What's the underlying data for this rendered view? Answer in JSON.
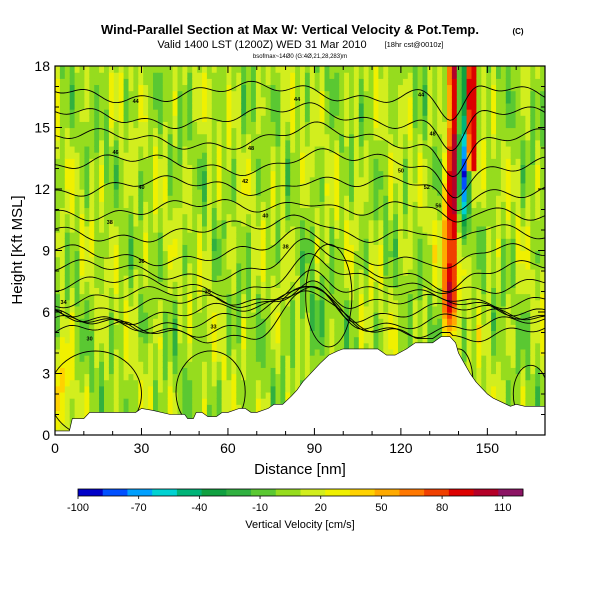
{
  "chart_data": {
    "type": "heatmap",
    "title": "Wind-Parallel Section at Max W: Vertical Velocity & Pot.Temp.",
    "title_mark": "(C)",
    "subtitle": "Valid 1400 LST (1200Z) WED 31 Mar 2010",
    "subtitle_tag": "[18hr cst@0010z]",
    "caption": "bsofmax~14Ø0 (G:4Ø,21,28,283)m",
    "xlabel": "Distance [nm]",
    "ylabel": "Height [Kft MSL]",
    "xlim": [
      0,
      170
    ],
    "ylim": [
      0,
      18
    ],
    "xticks": [
      "0",
      "30",
      "60",
      "90",
      "120",
      "150"
    ],
    "yticks": [
      "0",
      "3",
      "6",
      "9",
      "12",
      "15",
      "18"
    ],
    "colorbar": {
      "label": "Vertical Velocity [cm/s]",
      "range": [
        -100,
        120
      ],
      "tick_labels": [
        "-100",
        "-70",
        "-40",
        "-10",
        "20",
        "50",
        "80",
        "110"
      ],
      "colors": [
        "#0000c8",
        "#0050ff",
        "#00a0ff",
        "#00d2d2",
        "#00b478",
        "#10a040",
        "#30b040",
        "#5ac832",
        "#96dc1e",
        "#d2ee1e",
        "#f0f000",
        "#ffd200",
        "#ffaa00",
        "#ff7800",
        "#f04000",
        "#dc0000",
        "#b40028",
        "#8c1464"
      ]
    },
    "terrain": {
      "x": [
        0,
        5,
        6,
        10,
        12,
        28,
        30,
        34,
        40,
        45,
        46,
        48,
        49,
        51,
        53,
        56,
        58,
        60,
        64,
        66,
        68,
        70,
        74,
        76,
        79,
        82,
        84,
        86,
        90,
        92,
        95,
        98,
        100,
        104,
        108,
        112,
        115,
        118,
        122,
        125,
        128,
        131,
        134,
        137,
        139,
        140,
        142,
        144,
        146,
        148,
        150,
        152,
        155,
        158,
        160,
        163,
        166,
        168,
        170
      ],
      "height": [
        0.2,
        0.2,
        0.8,
        0.8,
        1.1,
        1.1,
        1.3,
        1.2,
        1.0,
        1.0,
        0.8,
        0.8,
        1.1,
        1.1,
        0.9,
        0.9,
        1.1,
        1.1,
        1.3,
        1.3,
        1.1,
        1.1,
        1.3,
        1.5,
        1.5,
        1.9,
        2.2,
        2.6,
        3.2,
        3.5,
        3.9,
        4.1,
        4.2,
        4.2,
        4.2,
        4.2,
        3.9,
        3.9,
        4.2,
        4.5,
        4.5,
        4.5,
        4.8,
        4.8,
        4.5,
        4.0,
        3.5,
        3.0,
        2.6,
        2.3,
        2.0,
        1.8,
        1.6,
        1.4,
        1.5,
        1.4,
        1.4,
        1.4,
        1.4
      ]
    },
    "wave_plume": {
      "x_range": [
        131,
        148
      ],
      "core_x": 140,
      "updraft_max": 110,
      "downdraft_min": -100
    },
    "theta_contours": {
      "levels": [
        30,
        31,
        32,
        33,
        34,
        35,
        36,
        37,
        38,
        40,
        42,
        44,
        46,
        48,
        50,
        52
      ],
      "base_heights": [
        5.0,
        5.3,
        5.6,
        5.9,
        6.3,
        6.7,
        7.3,
        8.0,
        8.8,
        9.9,
        11.0,
        12.1,
        13.2,
        14.4,
        15.5,
        16.7
      ],
      "labels": [
        {
          "x": 12,
          "y": 4.7,
          "text": "30"
        },
        {
          "x": 55,
          "y": 5.3,
          "text": "33"
        },
        {
          "x": 53,
          "y": 7.0,
          "text": "35"
        },
        {
          "x": 3,
          "y": 6.5,
          "text": "34"
        },
        {
          "x": 30,
          "y": 8.5,
          "text": "36"
        },
        {
          "x": 80,
          "y": 9.2,
          "text": "38"
        },
        {
          "x": 19,
          "y": 10.4,
          "text": "38"
        },
        {
          "x": 73,
          "y": 10.7,
          "text": "40"
        },
        {
          "x": 30,
          "y": 12.1,
          "text": "40"
        },
        {
          "x": 66,
          "y": 12.4,
          "text": "42"
        },
        {
          "x": 21,
          "y": 13.8,
          "text": "46"
        },
        {
          "x": 68,
          "y": 14.0,
          "text": "48"
        },
        {
          "x": 28,
          "y": 16.3,
          "text": "44"
        },
        {
          "x": 84,
          "y": 16.4,
          "text": "44"
        },
        {
          "x": 127,
          "y": 16.6,
          "text": "44"
        },
        {
          "x": 131,
          "y": 14.7,
          "text": "48"
        },
        {
          "x": 120,
          "y": 12.9,
          "text": "50"
        },
        {
          "x": 129,
          "y": 12.1,
          "text": "52"
        },
        {
          "x": 133,
          "y": 11.2,
          "text": "56"
        }
      ]
    }
  }
}
